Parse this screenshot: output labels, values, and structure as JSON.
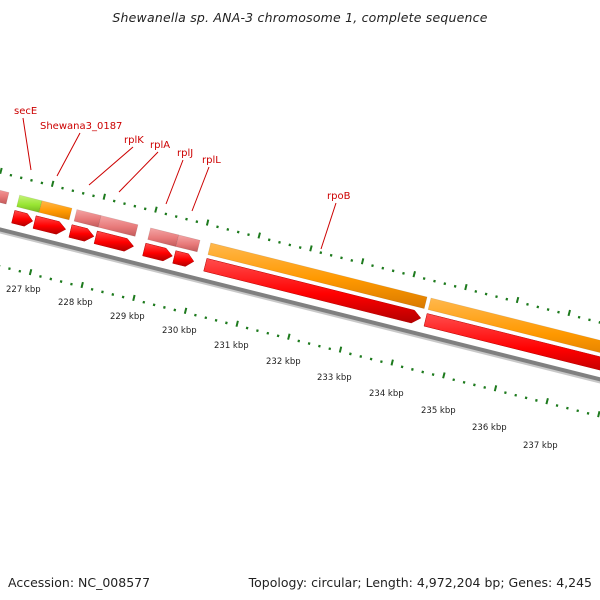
{
  "title": "Shewanella sp. ANA-3 chromosome 1, complete sequence",
  "footer": {
    "accession": "Accession: NC_008577",
    "summary": "Topology: circular; Length: 4,972,204 bp; Genes: 4,245"
  },
  "colors": {
    "backbone": "#808080",
    "backbone_light": "#c8c8c8",
    "tick": "#1d7a1d",
    "gene_cds": "#ff0000",
    "gene_cds_dark": "#b30000",
    "feature_orange": "#ff9900",
    "feature_pink": "#e87a7a",
    "feature_green": "#99e633",
    "label": "#cc0000"
  },
  "genes": [
    {
      "name": "secE"
    },
    {
      "name": "Shewana3_0187"
    },
    {
      "name": "rplK"
    },
    {
      "name": "rplA"
    },
    {
      "name": "rplJ"
    },
    {
      "name": "rplL"
    },
    {
      "name": "rpoB"
    }
  ],
  "scale": [
    {
      "label": "227 kbp",
      "kbp": 227
    },
    {
      "label": "228 kbp",
      "kbp": 228
    },
    {
      "label": "229 kbp",
      "kbp": 229
    },
    {
      "label": "230 kbp",
      "kbp": 230
    },
    {
      "label": "231 kbp",
      "kbp": 231
    },
    {
      "label": "232 kbp",
      "kbp": 232
    },
    {
      "label": "233 kbp",
      "kbp": 233
    },
    {
      "label": "234 kbp",
      "kbp": 234
    },
    {
      "label": "235 kbp",
      "kbp": 235
    },
    {
      "label": "236 kbp",
      "kbp": 236
    },
    {
      "label": "237 kbp",
      "kbp": 237
    }
  ]
}
